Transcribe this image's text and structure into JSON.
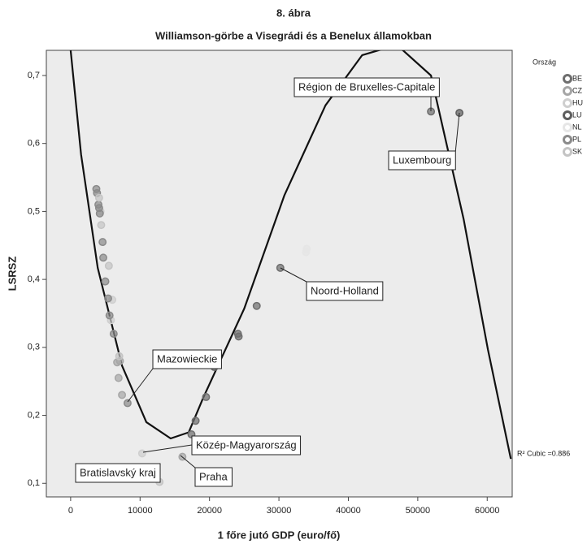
{
  "chart_data": {
    "type": "scatter",
    "title": "8. ábra",
    "subtitle": "Williamson-görbe a Visegrádi és a Benelux államokban",
    "x_label": "1 főre jutó GDP (euro/fő)",
    "y_label": "LSRSZ",
    "legend_title": "Ország",
    "legend_position": "right",
    "xlim": [
      -3500,
      63600
    ],
    "ylim": [
      0.08,
      0.737
    ],
    "xticks": [
      0,
      10000,
      20000,
      30000,
      40000,
      50000,
      60000
    ],
    "yticks": [
      {
        "value": 0.1,
        "label": "0,1"
      },
      {
        "value": 0.2,
        "label": "0,2"
      },
      {
        "value": 0.3,
        "label": "0,3"
      },
      {
        "value": 0.4,
        "label": "0,4"
      },
      {
        "value": 0.5,
        "label": "0,5"
      },
      {
        "value": 0.6,
        "label": "0,6"
      },
      {
        "value": 0.7,
        "label": "0,7"
      }
    ],
    "series": [
      {
        "name": "BE",
        "color": "#6e6e6e",
        "x": [
          51900,
          30200,
          26800,
          24100,
          24200,
          20700,
          19500,
          18000,
          17400
        ],
        "values": [
          0.647,
          0.417,
          0.361,
          0.32,
          0.316,
          0.271,
          0.227,
          0.192,
          0.172
        ]
      },
      {
        "name": "CZ",
        "color": "#a6a6a6",
        "x": [
          6700,
          6900,
          7400,
          7100,
          16100
        ],
        "values": [
          0.278,
          0.255,
          0.23,
          0.28,
          0.139
        ]
      },
      {
        "name": "HU",
        "color": "#cfcfcf",
        "x": [
          4300,
          5800,
          10300,
          6000
        ],
        "values": [
          0.5,
          0.34,
          0.144,
          0.37
        ]
      },
      {
        "name": "LU",
        "color": "#5e5e5e",
        "x": [
          56000
        ],
        "values": [
          0.645
        ]
      },
      {
        "name": "NL",
        "color": "#e6e6e6",
        "x": [
          33900,
          34000
        ],
        "values": [
          0.44,
          0.445
        ]
      },
      {
        "name": "PL",
        "color": "#8a8a8a",
        "x": [
          3700,
          3800,
          4000,
          4100,
          4200,
          4600,
          4700,
          5000,
          5400,
          5600,
          6200,
          8200
        ],
        "values": [
          0.533,
          0.527,
          0.51,
          0.505,
          0.497,
          0.455,
          0.432,
          0.397,
          0.372,
          0.347,
          0.32,
          0.218
        ]
      },
      {
        "name": "SK",
        "color": "#c4c4c4",
        "x": [
          4100,
          4400,
          5500,
          7000,
          12800
        ],
        "values": [
          0.52,
          0.48,
          0.42,
          0.287,
          0.102
        ]
      }
    ],
    "fit_line": {
      "x": [
        0,
        1500,
        3900,
        7400,
        10900,
        14400,
        17000,
        19100,
        25000,
        30800,
        36700,
        42000,
        47000,
        51900,
        56600,
        60100,
        63400
      ],
      "values": [
        0.737,
        0.584,
        0.417,
        0.273,
        0.19,
        0.166,
        0.175,
        0.226,
        0.357,
        0.524,
        0.656,
        0.73,
        0.745,
        0.7,
        0.489,
        0.297,
        0.136
      ]
    },
    "fit_label": "R² Cubic =0.886",
    "annotations": [
      "Région de Bruxelles-Capitale",
      "Luxembourg",
      "Noord-Holland",
      "Mazowieckie",
      "Közép-Magyarország",
      "Praha",
      "Bratislavský kraj"
    ]
  }
}
